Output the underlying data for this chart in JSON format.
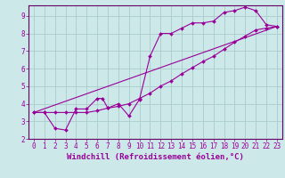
{
  "xlabel": "Windchill (Refroidissement éolien,°C)",
  "bg_color": "#cce8e8",
  "grid_color": "#aacccc",
  "line_color": "#990099",
  "marker_color": "#990099",
  "xlim": [
    -0.5,
    23.5
  ],
  "ylim": [
    2.0,
    9.6
  ],
  "yticks": [
    2,
    3,
    4,
    5,
    6,
    7,
    8,
    9
  ],
  "xticks": [
    0,
    1,
    2,
    3,
    4,
    5,
    6,
    7,
    8,
    9,
    10,
    11,
    12,
    13,
    14,
    15,
    16,
    17,
    18,
    19,
    20,
    21,
    22,
    23
  ],
  "line1_x": [
    0,
    1,
    2,
    3,
    4,
    5,
    6,
    6.5,
    7,
    8,
    9,
    10,
    11,
    12,
    13,
    14,
    15,
    16,
    17,
    18,
    19,
    20,
    21,
    22,
    23
  ],
  "line1_y": [
    3.5,
    3.5,
    2.6,
    2.5,
    3.7,
    3.7,
    4.3,
    4.3,
    3.75,
    4.0,
    3.3,
    4.25,
    6.7,
    8.0,
    8.0,
    8.3,
    8.6,
    8.6,
    8.7,
    9.2,
    9.3,
    9.5,
    9.3,
    8.5,
    8.4
  ],
  "line2_x": [
    0,
    1,
    2,
    3,
    4,
    5,
    6,
    7,
    8,
    9,
    10,
    11,
    12,
    13,
    14,
    15,
    16,
    17,
    18,
    19,
    20,
    21,
    22,
    23
  ],
  "line2_y": [
    3.5,
    3.5,
    3.5,
    3.5,
    3.5,
    3.5,
    3.6,
    3.75,
    3.85,
    4.0,
    4.3,
    4.6,
    5.0,
    5.3,
    5.7,
    6.05,
    6.4,
    6.7,
    7.1,
    7.5,
    7.85,
    8.2,
    8.3,
    8.4
  ],
  "line3_x": [
    0,
    23
  ],
  "line3_y": [
    3.5,
    8.4
  ],
  "tick_fontsize": 5.5,
  "label_fontsize": 6.5,
  "spine_color": "#660066"
}
